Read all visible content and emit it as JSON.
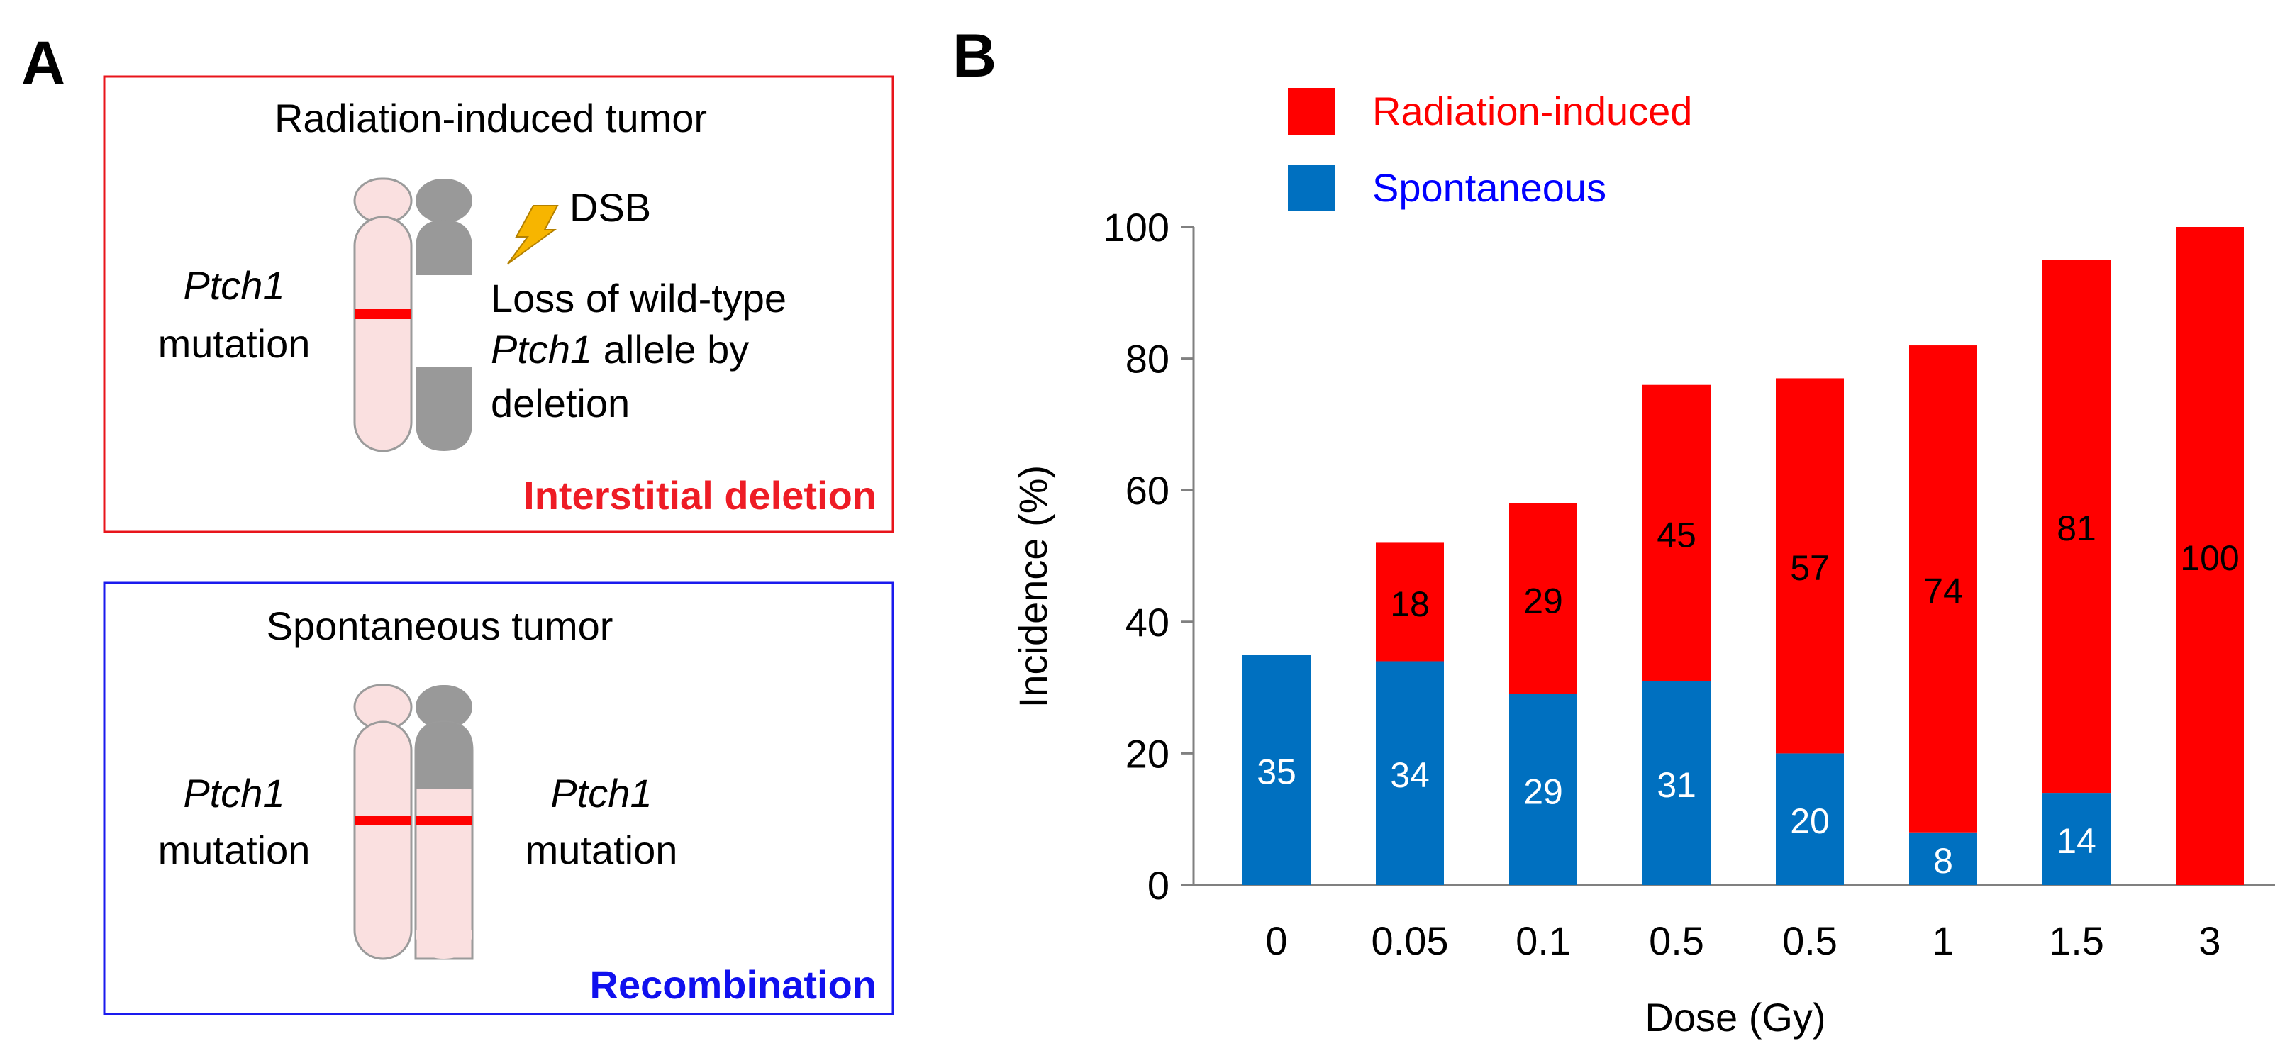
{
  "panel_a": {
    "label": "A",
    "top_box": {
      "title": "Radiation-induced tumor",
      "gene": "Ptch1",
      "mutation_word": "mutation",
      "dsb_label": "DSB",
      "loss_line1": "Loss of wild-type",
      "loss_gene": "Ptch1",
      "loss_line2_rest": " allele by",
      "loss_line3": "deletion",
      "mechanism": "Interstitial deletion",
      "border_color": "#e8141b",
      "mechanism_color": "#ee1c25"
    },
    "bottom_box": {
      "title": "Spontaneous tumor",
      "gene_left": "Ptch1",
      "mutation_left": "mutation",
      "gene_right": "Ptch1",
      "mutation_right": "mutation",
      "mechanism": "Recombination",
      "border_color": "#1a1aee",
      "mechanism_color": "#1010ee"
    },
    "colors": {
      "chromosome_pink": "#fae0e0",
      "chromosome_gray": "#999999",
      "mutation_red": "#ff0000",
      "bolt": "#f7b500"
    }
  },
  "panel_b": {
    "label": "B"
  },
  "chart_data": {
    "type": "bar",
    "stacked": true,
    "categories": [
      "0",
      "0.05",
      "0.1",
      "0.5",
      "0.5",
      "1",
      "1.5",
      "3"
    ],
    "series": [
      {
        "name": "Spontaneous",
        "values": [
          35,
          34,
          29,
          31,
          20,
          8,
          14,
          0
        ],
        "labels": [
          "35",
          "34",
          "29",
          "31",
          "20",
          "8",
          "14",
          ""
        ],
        "color": "#0070c0",
        "label_color": "#ffffff"
      },
      {
        "name": "Radiation-induced",
        "values": [
          0,
          18,
          29,
          45,
          57,
          74,
          81,
          100
        ],
        "labels": [
          "",
          "18",
          "29",
          "45",
          "57",
          "74",
          "81",
          "100"
        ],
        "color": "#ff0000",
        "label_color": "#000000"
      }
    ],
    "legend": [
      {
        "name": "Radiation-induced",
        "color": "#ff0000",
        "text_color": "#ff0000"
      },
      {
        "name": "Spontaneous",
        "color": "#0070c0",
        "text_color": "#0000ff"
      }
    ],
    "xlabel": "Dose (Gy)",
    "ylabel": "Incidence (%)",
    "ylim": [
      0,
      100
    ],
    "yticks": [
      0,
      20,
      40,
      60,
      80,
      100
    ],
    "grid": false,
    "legend_position": "top-left"
  }
}
